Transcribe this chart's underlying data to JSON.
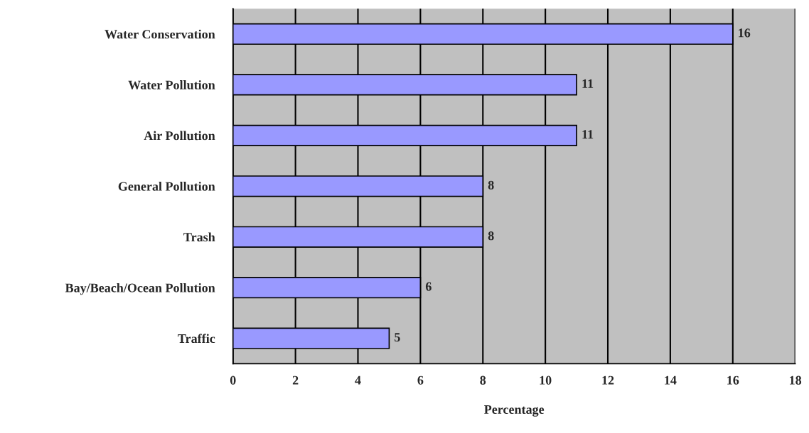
{
  "chart_data": {
    "type": "bar",
    "orientation": "horizontal",
    "categories": [
      "Water Conservation",
      "Water Pollution",
      "Air Pollution",
      "General Pollution",
      "Trash",
      "Bay/Beach/Ocean Pollution",
      "Traffic"
    ],
    "values": [
      16,
      11,
      11,
      8,
      8,
      6,
      5
    ],
    "color": "#9999ff",
    "xlabel": "Percentage",
    "xlim": [
      0,
      18
    ],
    "xticks": [
      0,
      2,
      4,
      6,
      8,
      10,
      12,
      14,
      16,
      18
    ],
    "grid": "x",
    "data_labels": true,
    "legend": false
  }
}
